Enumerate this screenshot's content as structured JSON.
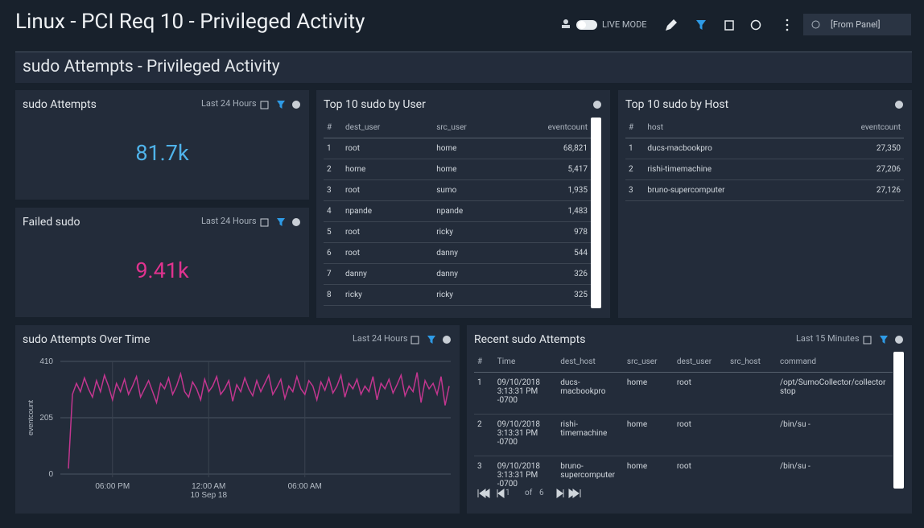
{
  "header": {
    "title": "Linux - PCI Req 10 - Privileged Activity",
    "live_mode": "LIVE MODE",
    "time_range": "[From Panel]"
  },
  "section": {
    "title": "sudo Attempts - Privileged Activity"
  },
  "panels": {
    "sudo_attempts": {
      "title": "sudo Attempts",
      "time_range": "Last 24 Hours",
      "value": "81.7k",
      "color": "#4fb3ea"
    },
    "failed_sudo": {
      "title": "Failed sudo",
      "time_range": "Last 24 Hours",
      "value": "9.41k",
      "color": "#e0338f"
    },
    "top_users": {
      "title": "Top 10 sudo by User",
      "columns": [
        "#",
        "dest_user",
        "src_user",
        "eventcount"
      ],
      "rows": [
        [
          "1",
          "root",
          "home",
          "68,821"
        ],
        [
          "2",
          "home",
          "home",
          "5,417"
        ],
        [
          "3",
          "root",
          "sumo",
          "1,935"
        ],
        [
          "4",
          "npande",
          "npande",
          "1,483"
        ],
        [
          "5",
          "root",
          "ricky",
          "978"
        ],
        [
          "6",
          "root",
          "danny",
          "544"
        ],
        [
          "7",
          "danny",
          "danny",
          "326"
        ],
        [
          "8",
          "ricky",
          "ricky",
          "325"
        ]
      ]
    },
    "top_hosts": {
      "title": "Top 10 sudo by Host",
      "columns": [
        "#",
        "host",
        "eventcount"
      ],
      "rows": [
        [
          "1",
          "ducs-macbookpro",
          "27,350"
        ],
        [
          "2",
          "rishi-timemachine",
          "27,206"
        ],
        [
          "3",
          "bruno-supercomputer",
          "27,126"
        ]
      ]
    },
    "recent": {
      "title": "Recent sudo Attempts",
      "time_range": "Last 15 Minutes",
      "columns": [
        "#",
        "Time",
        "dest_host",
        "src_user",
        "dest_user",
        "src_host",
        "command"
      ],
      "rows": [
        [
          "1",
          "09/10/2018 3:13:31 PM -0700",
          "ducs-macbookpro",
          "home",
          "root",
          null,
          "/opt/SumoCollector/collector stop"
        ],
        [
          "2",
          "09/10/2018 3:13:31 PM -0700",
          "rishi-timemachine",
          "home",
          "root",
          null,
          "/bin/su -"
        ],
        [
          "3",
          "09/10/2018 3:13:31 PM -0700",
          "bruno-supercomputer",
          "home",
          "root",
          null,
          "/bin/su -"
        ]
      ],
      "pagination": {
        "page": "1",
        "of": "of",
        "pages": "6"
      }
    }
  },
  "chart_data": {
    "type": "line",
    "title": "sudo Attempts Over Time",
    "time_range": "Last 24 Hours",
    "ylabel": "eventcount",
    "color": "#c2368f",
    "grid": true,
    "values": [
      20,
      290,
      330,
      300,
      350,
      310,
      280,
      340,
      300,
      360,
      320,
      270,
      330,
      300,
      345,
      290,
      320,
      355,
      280,
      310,
      340,
      300,
      260,
      330,
      310,
      350,
      290,
      320,
      365,
      300,
      280,
      335,
      310,
      270,
      345,
      300,
      320,
      355,
      290,
      310,
      340,
      265,
      325,
      300,
      350,
      310,
      285,
      340,
      300,
      330,
      360,
      290,
      315,
      345,
      275,
      320,
      300,
      355,
      310,
      290,
      340,
      320,
      270,
      335,
      305,
      350,
      295,
      320,
      360,
      280,
      330,
      310,
      345,
      290,
      320,
      300,
      355,
      270,
      330,
      310,
      345,
      295,
      325,
      360,
      285,
      320,
      300,
      370,
      260,
      340,
      310,
      330,
      290,
      355,
      250,
      320
    ],
    "xlim": [
      0,
      95
    ],
    "xticks": [
      {
        "value": 11,
        "label": "06:00 PM"
      },
      {
        "value": 35,
        "label": "12:00 AM"
      },
      {
        "value": 59,
        "label": "06:00 AM"
      }
    ],
    "x_date_label": "10 Sep 18",
    "ylim": [
      0,
      410
    ],
    "yticks": [
      0,
      205,
      410
    ]
  }
}
